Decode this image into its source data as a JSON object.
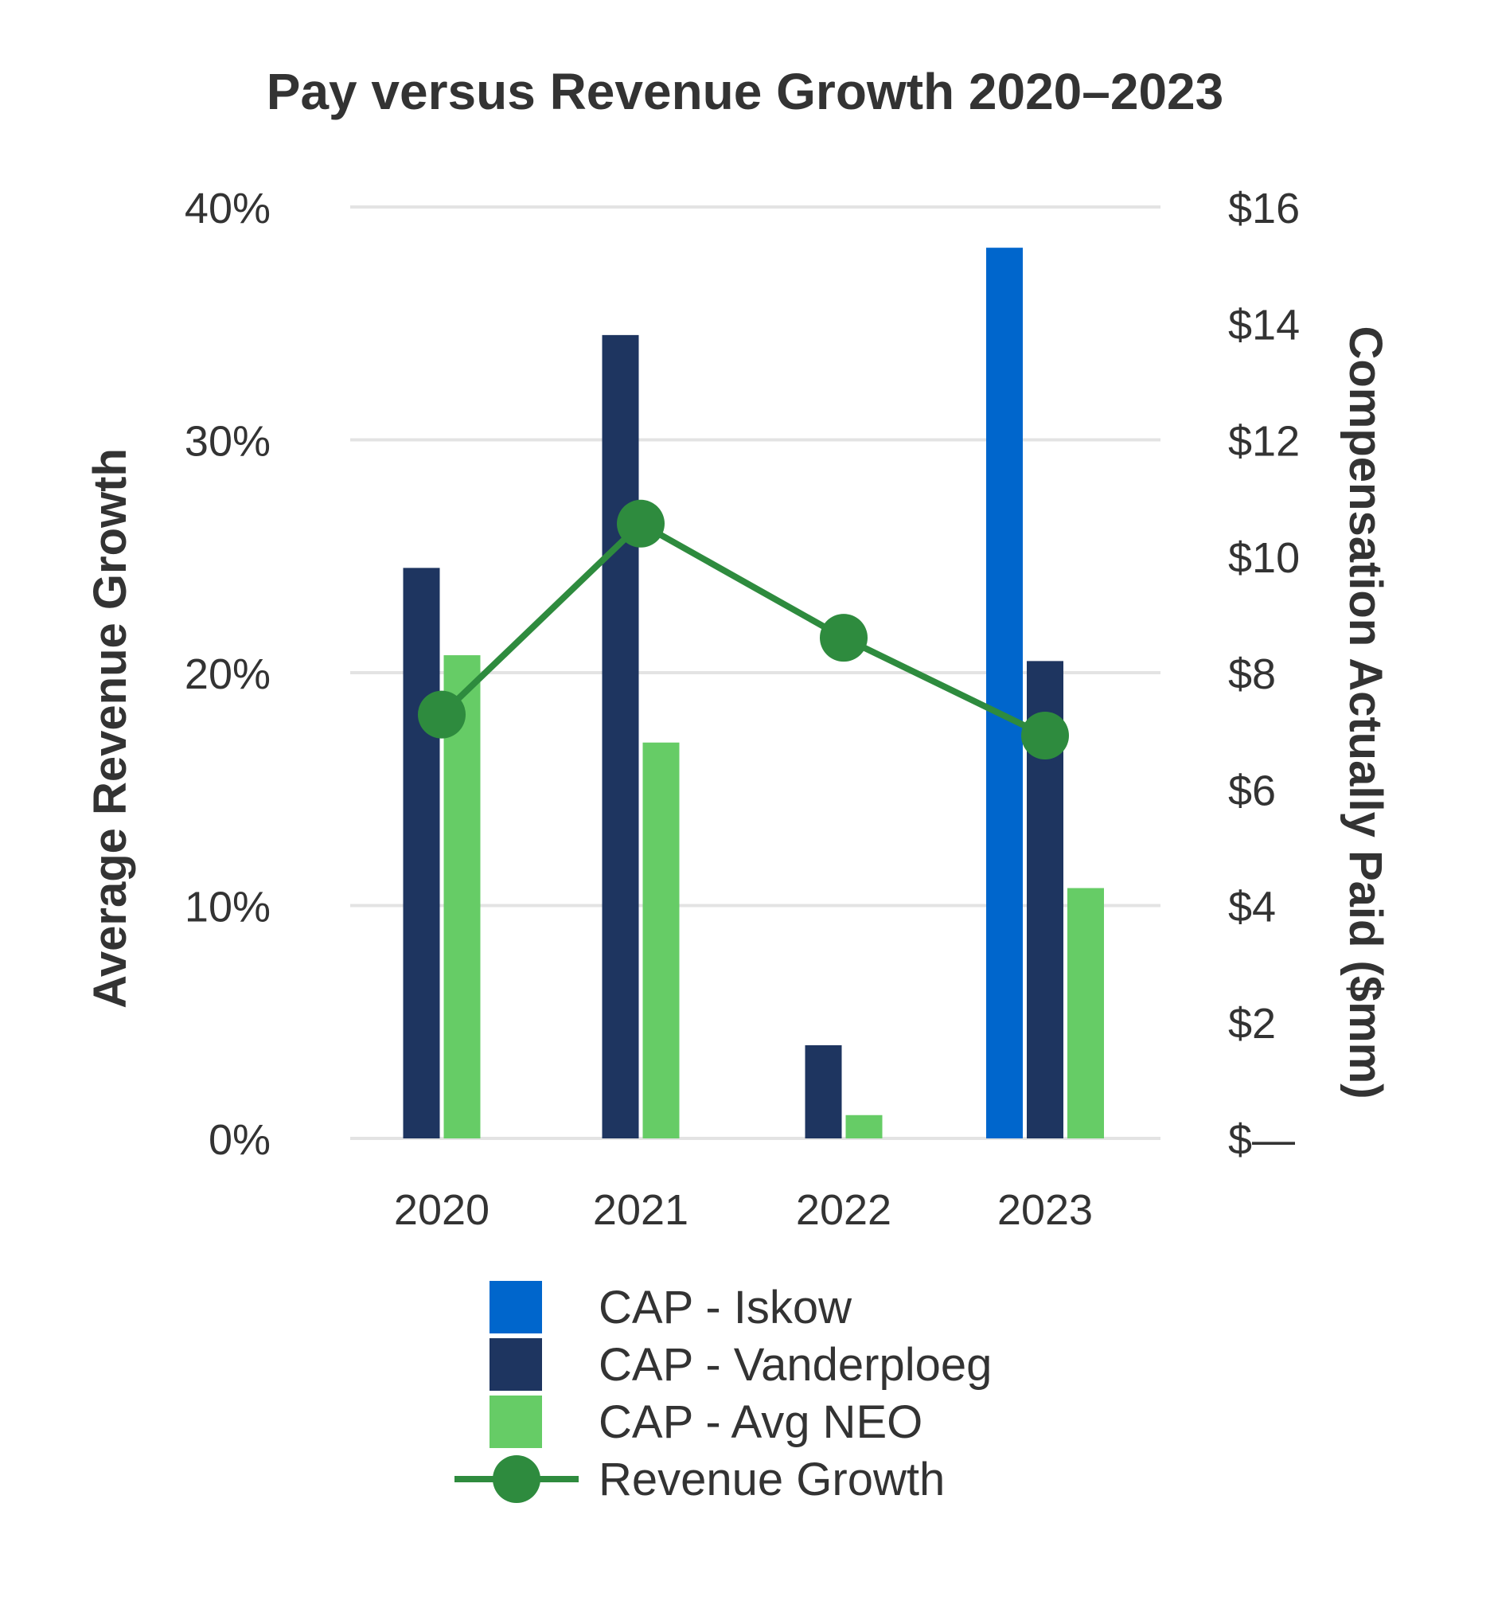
{
  "chart_data": {
    "type": "bar",
    "title": "Pay versus Revenue Growth 2020–2023",
    "categories": [
      "2020",
      "2021",
      "2022",
      "2023"
    ],
    "series": [
      {
        "name": "CAP - Iskow",
        "axis": "right",
        "color": "#0066cc",
        "values": [
          null,
          null,
          null,
          15.3
        ]
      },
      {
        "name": "CAP - Vanderploeg",
        "axis": "right",
        "color": "#1e3560",
        "values": [
          9.8,
          13.8,
          1.6,
          8.2
        ]
      },
      {
        "name": "CAP - Avg NEO",
        "axis": "right",
        "color": "#66cc66",
        "values": [
          8.3,
          6.8,
          0.4,
          4.3
        ]
      },
      {
        "name": "Revenue Growth",
        "type": "line",
        "axis": "left",
        "color": "#2e8b3e",
        "values": [
          18.2,
          26.4,
          21.5,
          17.3
        ]
      }
    ],
    "left_axis": {
      "label": "Average Revenue Growth",
      "range": [
        0,
        40
      ],
      "ticks": [
        "0%",
        "10%",
        "20%",
        "30%",
        "40%"
      ]
    },
    "right_axis": {
      "label": "Compensation Actually Paid ($mm)",
      "range": [
        0,
        16
      ],
      "ticks": [
        "$—",
        "$2",
        "$4",
        "$6",
        "$8",
        "$10",
        "$12",
        "$14",
        "$16"
      ]
    },
    "grid": true,
    "legend_position": "bottom"
  }
}
